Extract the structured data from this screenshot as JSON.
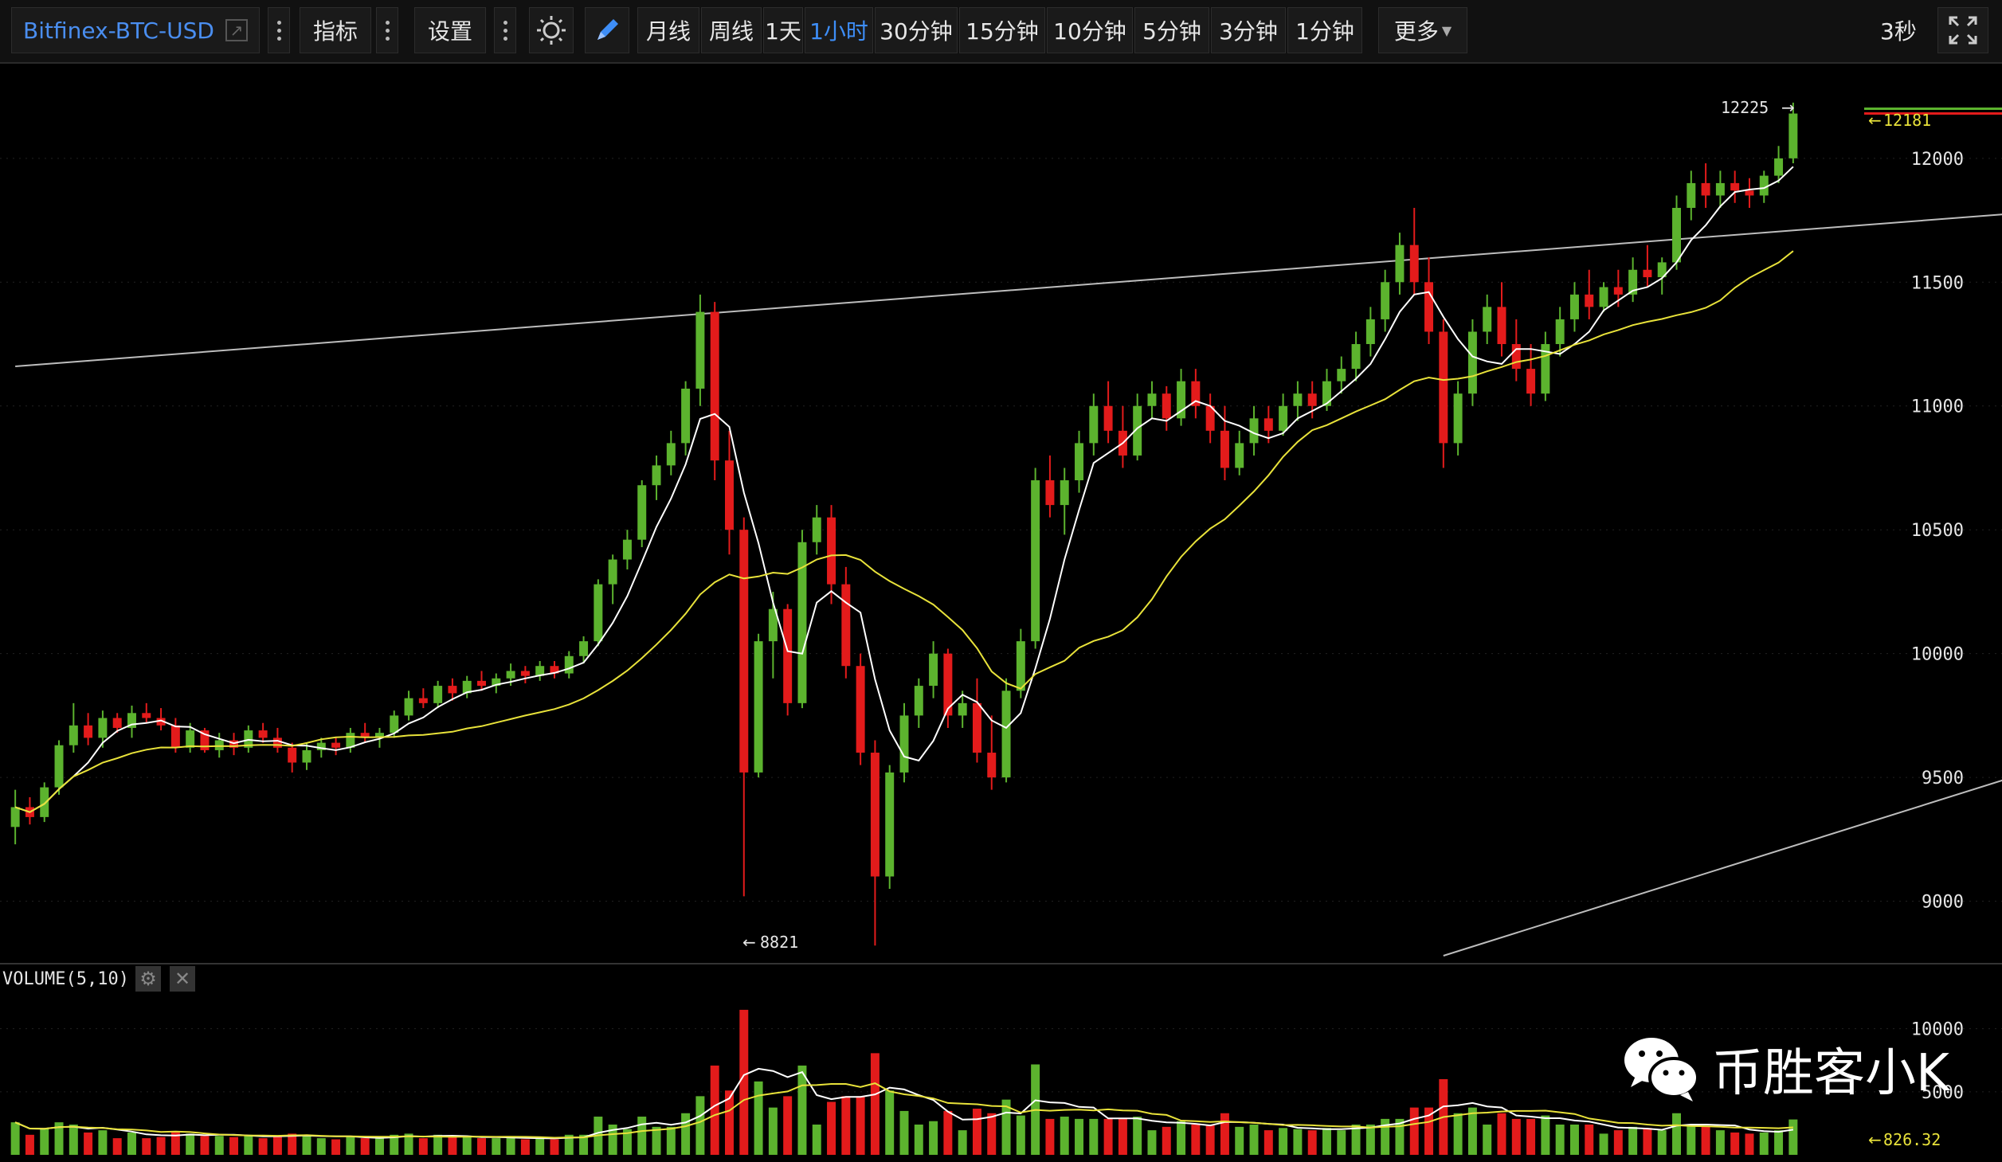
{
  "toolbar": {
    "symbol": "Bitfinex-BTC-USD",
    "indicators_label": "指标",
    "settings_label": "设置",
    "periods": [
      "月线",
      "周线",
      "1天",
      "1小时",
      "30分钟",
      "15分钟",
      "10分钟",
      "5分钟",
      "3分钟",
      "1分钟"
    ],
    "active_period": "1小时",
    "more_label": "更多",
    "refresh_interval": "3秒"
  },
  "price_axis": {
    "ticks": [
      "12000",
      "11500",
      "11000",
      "10500",
      "10000",
      "9500",
      "9000"
    ],
    "last_price": "12181",
    "high_marker": "12225",
    "low_marker": "8821"
  },
  "volume_panel": {
    "label": "VOLUME(5,10)",
    "ticks": [
      "10000",
      "5000"
    ],
    "last_volume": "826.32"
  },
  "watermark": {
    "text": "币胜客小K"
  },
  "colors": {
    "up": "#5cb32e",
    "down": "#e31b1b",
    "ma_short": "#ffffff",
    "ma_long": "#e8e23a",
    "accent": "#3e8ef7",
    "trendline": "#bdbdbd"
  },
  "chart_data": {
    "type": "candlestick",
    "title": "",
    "xlabel": "",
    "ylabel": "",
    "ylim": [
      8780,
      12350
    ],
    "ma_periods": [
      5,
      10
    ],
    "trendlines": [
      {
        "name": "",
        "from": [
          0,
          11160
        ],
        "to": [
          254,
          12303
        ]
      },
      {
        "name": "",
        "from": [
          98,
          8780
        ],
        "to": [
          254,
          11660
        ]
      }
    ],
    "series": [
      {
        "name": "OHLC",
        "values": [
          [
            0,
            9300,
            9450,
            9230,
            9380
          ],
          [
            1,
            9380,
            9420,
            9310,
            9340
          ],
          [
            2,
            9340,
            9480,
            9320,
            9460
          ],
          [
            3,
            9460,
            9650,
            9430,
            9630
          ],
          [
            4,
            9630,
            9800,
            9600,
            9710
          ],
          [
            5,
            9710,
            9760,
            9630,
            9660
          ],
          [
            6,
            9660,
            9770,
            9620,
            9740
          ],
          [
            7,
            9740,
            9760,
            9680,
            9700
          ],
          [
            8,
            9700,
            9790,
            9660,
            9760
          ],
          [
            9,
            9760,
            9800,
            9720,
            9740
          ],
          [
            10,
            9740,
            9780,
            9690,
            9710
          ],
          [
            11,
            9710,
            9740,
            9600,
            9620
          ],
          [
            12,
            9620,
            9720,
            9600,
            9690
          ],
          [
            13,
            9690,
            9700,
            9600,
            9610
          ],
          [
            14,
            9610,
            9680,
            9580,
            9650
          ],
          [
            15,
            9650,
            9680,
            9590,
            9620
          ],
          [
            16,
            9620,
            9710,
            9600,
            9690
          ],
          [
            17,
            9690,
            9720,
            9640,
            9660
          ],
          [
            18,
            9660,
            9700,
            9600,
            9620
          ],
          [
            19,
            9620,
            9640,
            9520,
            9560
          ],
          [
            20,
            9560,
            9640,
            9530,
            9610
          ],
          [
            21,
            9610,
            9660,
            9580,
            9640
          ],
          [
            22,
            9640,
            9660,
            9590,
            9620
          ],
          [
            23,
            9620,
            9700,
            9600,
            9680
          ],
          [
            24,
            9680,
            9720,
            9640,
            9660
          ],
          [
            25,
            9660,
            9700,
            9620,
            9680
          ],
          [
            26,
            9680,
            9770,
            9660,
            9750
          ],
          [
            27,
            9750,
            9850,
            9730,
            9820
          ],
          [
            28,
            9820,
            9860,
            9780,
            9800
          ],
          [
            29,
            9800,
            9890,
            9780,
            9870
          ],
          [
            30,
            9870,
            9900,
            9810,
            9840
          ],
          [
            31,
            9840,
            9910,
            9820,
            9890
          ],
          [
            32,
            9890,
            9930,
            9850,
            9870
          ],
          [
            33,
            9870,
            9920,
            9840,
            9900
          ],
          [
            34,
            9900,
            9960,
            9870,
            9930
          ],
          [
            35,
            9930,
            9950,
            9880,
            9910
          ],
          [
            36,
            9910,
            9970,
            9890,
            9950
          ],
          [
            37,
            9950,
            9970,
            9900,
            9920
          ],
          [
            38,
            9920,
            10010,
            9900,
            9990
          ],
          [
            39,
            9990,
            10070,
            9960,
            10050
          ],
          [
            40,
            10050,
            10300,
            10030,
            10280
          ],
          [
            41,
            10280,
            10400,
            10200,
            10380
          ],
          [
            42,
            10380,
            10500,
            10340,
            10460
          ],
          [
            43,
            10460,
            10700,
            10430,
            10680
          ],
          [
            44,
            10680,
            10800,
            10620,
            10760
          ],
          [
            45,
            10760,
            10900,
            10720,
            10850
          ],
          [
            46,
            10850,
            11100,
            10800,
            11070
          ],
          [
            47,
            11070,
            11450,
            11000,
            11380
          ],
          [
            48,
            11380,
            11420,
            10700,
            10780
          ],
          [
            49,
            10780,
            10900,
            10400,
            10500
          ],
          [
            50,
            10500,
            10550,
            9020,
            9520
          ],
          [
            51,
            9520,
            10080,
            9500,
            10050
          ],
          [
            52,
            10050,
            10250,
            9900,
            10180
          ],
          [
            53,
            10180,
            10200,
            9750,
            9800
          ],
          [
            54,
            9800,
            10500,
            9780,
            10450
          ],
          [
            55,
            10450,
            10600,
            10400,
            10550
          ],
          [
            56,
            10550,
            10600,
            10200,
            10280
          ],
          [
            57,
            10280,
            10350,
            9900,
            9950
          ],
          [
            58,
            9950,
            10000,
            9550,
            9600
          ],
          [
            59,
            9600,
            9650,
            8821,
            9100
          ],
          [
            60,
            9100,
            9550,
            9050,
            9520
          ],
          [
            61,
            9520,
            9800,
            9480,
            9750
          ],
          [
            62,
            9750,
            9900,
            9700,
            9870
          ],
          [
            63,
            9870,
            10050,
            9820,
            10000
          ],
          [
            64,
            10000,
            10020,
            9700,
            9750
          ],
          [
            65,
            9750,
            9850,
            9700,
            9800
          ],
          [
            66,
            9800,
            9900,
            9560,
            9600
          ],
          [
            67,
            9600,
            9750,
            9450,
            9500
          ],
          [
            68,
            9500,
            9900,
            9480,
            9850
          ],
          [
            69,
            9850,
            10100,
            9820,
            10050
          ],
          [
            70,
            10050,
            10750,
            10020,
            10700
          ],
          [
            71,
            10700,
            10800,
            10550,
            10600
          ],
          [
            72,
            10600,
            10750,
            10480,
            10700
          ],
          [
            73,
            10700,
            10900,
            10650,
            10850
          ],
          [
            74,
            10850,
            11050,
            10800,
            11000
          ],
          [
            75,
            11000,
            11100,
            10850,
            10900
          ],
          [
            76,
            10900,
            11000,
            10750,
            10800
          ],
          [
            77,
            10800,
            11050,
            10780,
            11000
          ],
          [
            78,
            11000,
            11100,
            10950,
            11050
          ],
          [
            79,
            11050,
            11080,
            10900,
            10950
          ],
          [
            80,
            10950,
            11150,
            10920,
            11100
          ],
          [
            81,
            11100,
            11150,
            10950,
            11000
          ],
          [
            82,
            11000,
            11050,
            10850,
            10900
          ],
          [
            83,
            10900,
            11000,
            10700,
            10750
          ],
          [
            84,
            10750,
            10900,
            10720,
            10850
          ],
          [
            85,
            10850,
            11000,
            10800,
            10950
          ],
          [
            86,
            10950,
            11000,
            10850,
            10900
          ],
          [
            87,
            10900,
            11050,
            10880,
            11000
          ],
          [
            88,
            11000,
            11100,
            10940,
            11050
          ],
          [
            89,
            11050,
            11100,
            10950,
            11000
          ],
          [
            90,
            11000,
            11150,
            10980,
            11100
          ],
          [
            91,
            11100,
            11200,
            11050,
            11150
          ],
          [
            92,
            11150,
            11300,
            11100,
            11250
          ],
          [
            93,
            11250,
            11400,
            11200,
            11350
          ],
          [
            94,
            11350,
            11550,
            11300,
            11500
          ],
          [
            95,
            11500,
            11700,
            11450,
            11650
          ],
          [
            96,
            11650,
            11800,
            11450,
            11500
          ],
          [
            97,
            11500,
            11600,
            11250,
            11300
          ],
          [
            98,
            11300,
            11350,
            10750,
            10850
          ],
          [
            99,
            10850,
            11100,
            10800,
            11050
          ],
          [
            100,
            11050,
            11350,
            11000,
            11300
          ],
          [
            101,
            11300,
            11450,
            11250,
            11400
          ],
          [
            102,
            11400,
            11500,
            11200,
            11250
          ],
          [
            103,
            11250,
            11350,
            11100,
            11150
          ],
          [
            104,
            11150,
            11250,
            11000,
            11050
          ],
          [
            105,
            11050,
            11300,
            11020,
            11250
          ],
          [
            106,
            11250,
            11400,
            11200,
            11350
          ],
          [
            107,
            11350,
            11500,
            11300,
            11450
          ],
          [
            108,
            11450,
            11550,
            11350,
            11400
          ],
          [
            109,
            11400,
            11500,
            11380,
            11480
          ],
          [
            110,
            11480,
            11550,
            11400,
            11450
          ],
          [
            111,
            11450,
            11600,
            11420,
            11550
          ],
          [
            112,
            11550,
            11650,
            11480,
            11520
          ],
          [
            113,
            11520,
            11600,
            11450,
            11580
          ],
          [
            114,
            11580,
            11850,
            11550,
            11800
          ],
          [
            115,
            11800,
            11950,
            11750,
            11900
          ],
          [
            116,
            11900,
            11980,
            11800,
            11850
          ],
          [
            117,
            11850,
            11950,
            11800,
            11900
          ],
          [
            118,
            11900,
            11950,
            11820,
            11870
          ],
          [
            119,
            11870,
            11920,
            11800,
            11850
          ],
          [
            120,
            11850,
            11950,
            11820,
            11930
          ],
          [
            121,
            11930,
            12050,
            11900,
            12000
          ],
          [
            122,
            12000,
            12225,
            11980,
            12181
          ]
        ]
      }
    ]
  }
}
